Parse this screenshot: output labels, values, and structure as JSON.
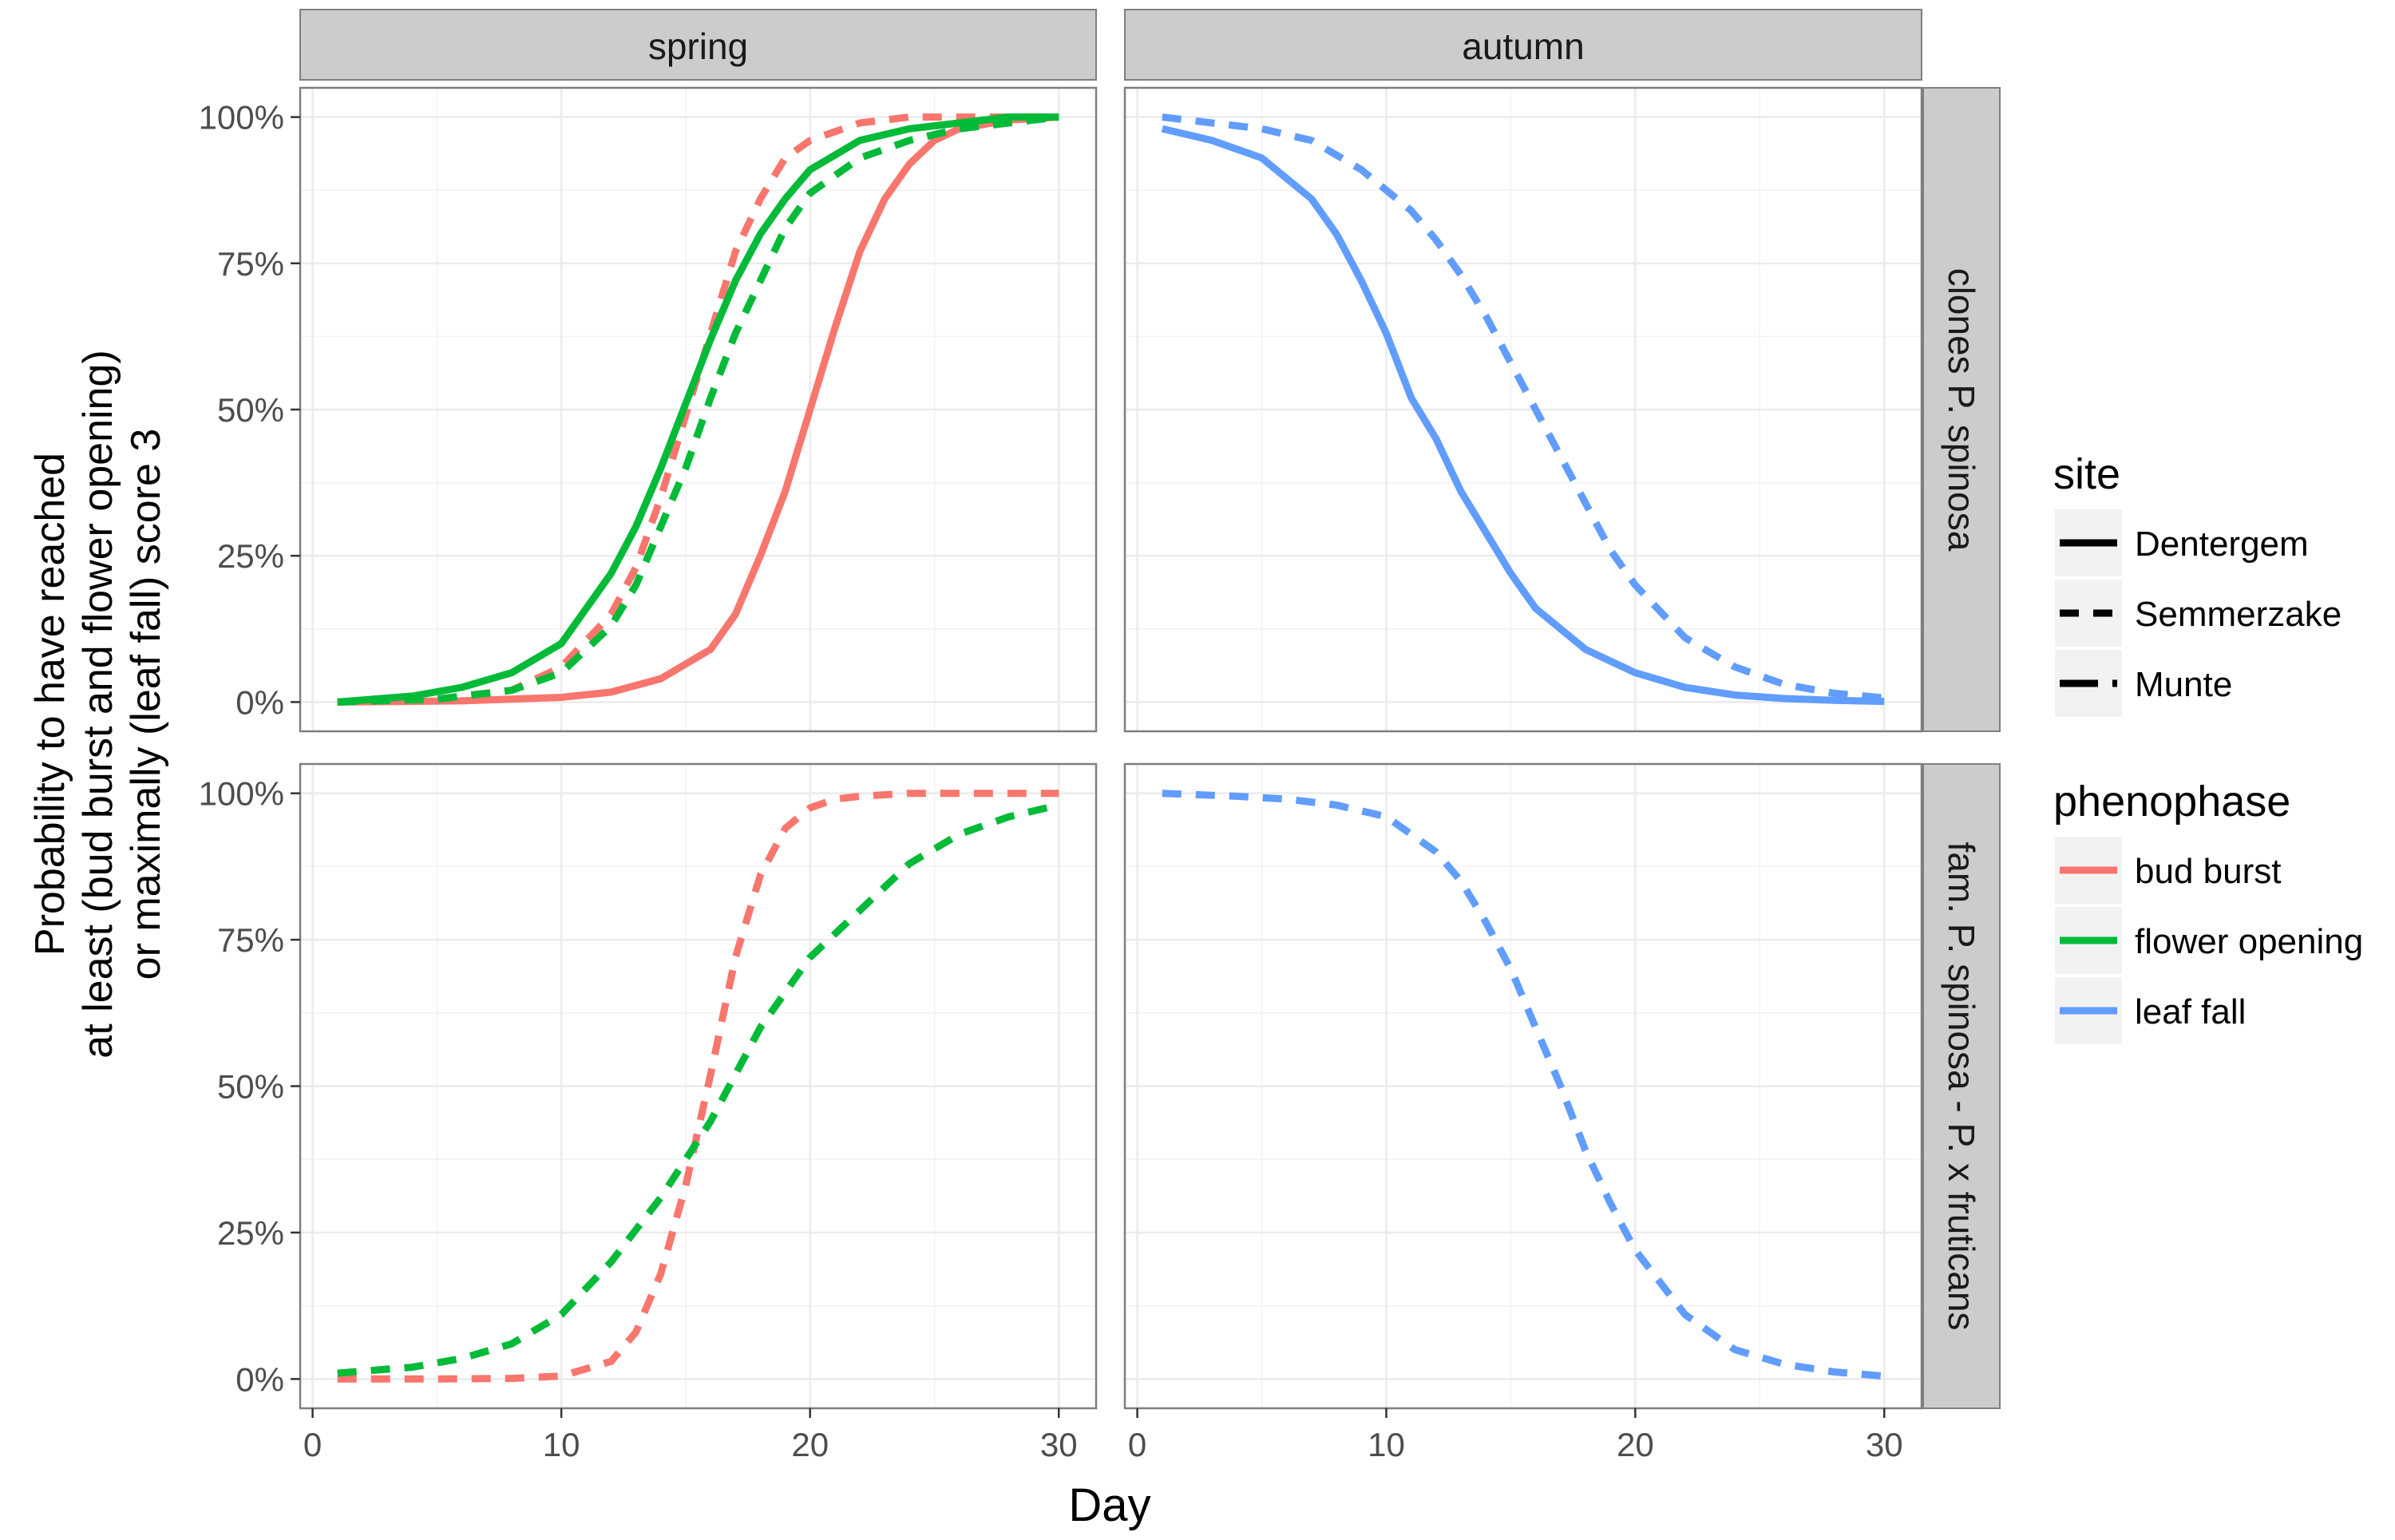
{
  "chart_data": {
    "type": "line",
    "title": "",
    "xlabel": "Day",
    "ylabel_lines": [
      "Probability to have reached",
      "at least (bud burst and flower opening)",
      "or maximally (leaf fall) score 3"
    ],
    "xlim": [
      -0.5,
      31.5
    ],
    "ylim": [
      -0.05,
      1.05
    ],
    "x_ticks": [
      0,
      10,
      20,
      30
    ],
    "y_ticks": [
      0,
      0.25,
      0.5,
      0.75,
      1
    ],
    "y_tick_labels": [
      "0%",
      "25%",
      "50%",
      "75%",
      "100%"
    ],
    "grid": true,
    "facet_cols": [
      "spring",
      "autumn"
    ],
    "facet_rows": [
      "clones P. spinosa",
      "fam. P. spinosa - P. x fruticans"
    ],
    "colors": {
      "bud burst": "#F8766D",
      "flower opening": "#00BA38",
      "leaf fall": "#619CFF"
    },
    "legend": {
      "placement": "right",
      "site": {
        "title": "site",
        "items": [
          {
            "label": "Dentergem",
            "dash": "solid"
          },
          {
            "label": "Semmerzake",
            "dash": "dashed"
          },
          {
            "label": "Munte",
            "dash": "longdash"
          }
        ]
      },
      "phenophase": {
        "title": "phenophase",
        "items": [
          {
            "label": "bud burst",
            "color": "#F8766D"
          },
          {
            "label": "flower opening",
            "color": "#00BA38"
          },
          {
            "label": "leaf fall",
            "color": "#619CFF"
          }
        ]
      }
    },
    "series": [
      {
        "panel": [
          0,
          0
        ],
        "phenophase": "bud burst",
        "site": "Dentergem",
        "x": [
          1,
          6,
          10,
          12,
          14,
          16,
          17,
          18,
          19,
          20,
          21,
          22,
          23,
          24,
          25,
          26,
          28,
          30
        ],
        "y": [
          0,
          0.002,
          0.008,
          0.017,
          0.04,
          0.09,
          0.15,
          0.25,
          0.36,
          0.5,
          0.64,
          0.77,
          0.86,
          0.92,
          0.96,
          0.98,
          0.995,
          1.0
        ]
      },
      {
        "panel": [
          0,
          0
        ],
        "phenophase": "bud burst",
        "site": "Semmerzake",
        "x": [
          1,
          5,
          8,
          10,
          12,
          13,
          14,
          15,
          16,
          17,
          18,
          19,
          20,
          22,
          24,
          26,
          28,
          30
        ],
        "y": [
          0,
          0.005,
          0.02,
          0.06,
          0.15,
          0.23,
          0.35,
          0.49,
          0.63,
          0.77,
          0.86,
          0.93,
          0.96,
          0.99,
          1.0,
          1.0,
          1.0,
          1.0
        ]
      },
      {
        "panel": [
          0,
          0
        ],
        "phenophase": "flower opening",
        "site": "Dentergem",
        "x": [
          1,
          4,
          6,
          8,
          10,
          12,
          13,
          14,
          15,
          16,
          17,
          18,
          19,
          20,
          22,
          24,
          26,
          28,
          30
        ],
        "y": [
          0,
          0.01,
          0.025,
          0.05,
          0.1,
          0.22,
          0.3,
          0.4,
          0.51,
          0.62,
          0.72,
          0.8,
          0.86,
          0.91,
          0.96,
          0.98,
          0.99,
          1.0,
          1.0
        ]
      },
      {
        "panel": [
          0,
          0
        ],
        "phenophase": "flower opening",
        "site": "Semmerzake",
        "x": [
          1,
          5,
          8,
          10,
          12,
          13,
          14,
          15,
          16,
          17,
          18,
          19,
          20,
          22,
          24,
          26,
          28,
          30
        ],
        "y": [
          0,
          0.005,
          0.02,
          0.05,
          0.13,
          0.2,
          0.3,
          0.4,
          0.52,
          0.63,
          0.72,
          0.81,
          0.87,
          0.93,
          0.96,
          0.98,
          0.99,
          1.0
        ]
      },
      {
        "panel": [
          0,
          1
        ],
        "phenophase": "leaf fall",
        "site": "Dentergem",
        "x": [
          1,
          3,
          5,
          7,
          8,
          9,
          10,
          11,
          12,
          13,
          14,
          15,
          16,
          18,
          20,
          22,
          24,
          26,
          28,
          30
        ],
        "y": [
          0.98,
          0.96,
          0.93,
          0.86,
          0.8,
          0.72,
          0.63,
          0.52,
          0.45,
          0.36,
          0.29,
          0.22,
          0.16,
          0.09,
          0.05,
          0.025,
          0.012,
          0.006,
          0.003,
          0.001
        ]
      },
      {
        "panel": [
          0,
          1
        ],
        "phenophase": "leaf fall",
        "site": "Semmerzake",
        "x": [
          1,
          3,
          5,
          7,
          9,
          11,
          12,
          13,
          14,
          15,
          16,
          17,
          18,
          19,
          20,
          22,
          24,
          26,
          28,
          30
        ],
        "y": [
          1.0,
          0.99,
          0.98,
          0.96,
          0.91,
          0.84,
          0.79,
          0.73,
          0.66,
          0.58,
          0.5,
          0.42,
          0.34,
          0.26,
          0.2,
          0.11,
          0.06,
          0.03,
          0.015,
          0.007
        ]
      },
      {
        "panel": [
          1,
          0
        ],
        "phenophase": "bud burst",
        "site": "Semmerzake",
        "x": [
          1,
          5,
          8,
          10,
          12,
          13,
          14,
          15,
          16,
          17,
          18,
          19,
          20,
          21,
          22,
          24,
          26,
          28,
          30
        ],
        "y": [
          0,
          0,
          0.001,
          0.005,
          0.03,
          0.08,
          0.18,
          0.33,
          0.52,
          0.72,
          0.86,
          0.94,
          0.975,
          0.99,
          0.995,
          1.0,
          1.0,
          1.0,
          1.0
        ]
      },
      {
        "panel": [
          1,
          0
        ],
        "phenophase": "flower opening",
        "site": "Semmerzake",
        "x": [
          1,
          4,
          6,
          8,
          10,
          12,
          14,
          16,
          17,
          18,
          19,
          20,
          22,
          24,
          26,
          28,
          30
        ],
        "y": [
          0.01,
          0.02,
          0.035,
          0.06,
          0.11,
          0.2,
          0.31,
          0.44,
          0.52,
          0.6,
          0.66,
          0.72,
          0.8,
          0.88,
          0.93,
          0.96,
          0.98
        ]
      },
      {
        "panel": [
          1,
          1
        ],
        "phenophase": "leaf fall",
        "site": "Semmerzake",
        "x": [
          1,
          4,
          6,
          8,
          10,
          12,
          13,
          14,
          15,
          16,
          17,
          18,
          19,
          20,
          22,
          24,
          26,
          28,
          30
        ],
        "y": [
          1.0,
          0.995,
          0.99,
          0.98,
          0.96,
          0.9,
          0.85,
          0.78,
          0.7,
          0.6,
          0.5,
          0.39,
          0.3,
          0.22,
          0.11,
          0.05,
          0.025,
          0.012,
          0.005
        ]
      }
    ]
  }
}
